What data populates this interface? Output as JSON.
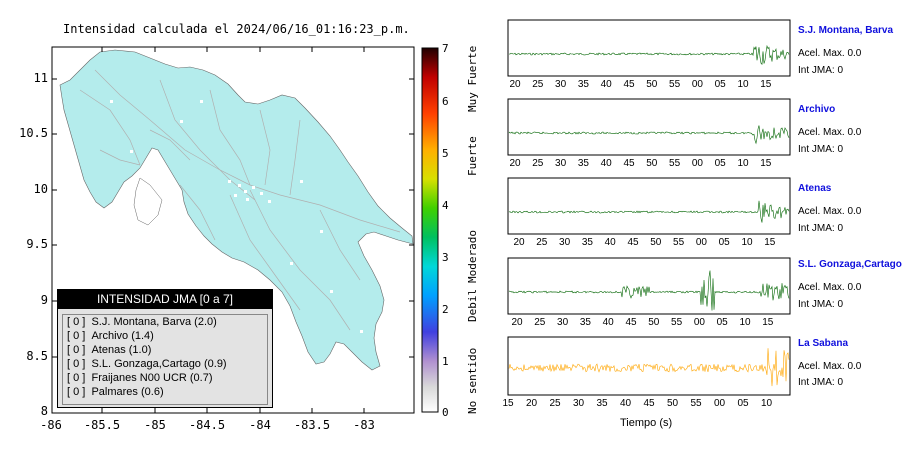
{
  "map": {
    "title": "Intensidad calculada el 2024/06/16_01:16:23_p.m.",
    "lat_ticks": [
      "11",
      "10.5",
      "10",
      "9.5",
      "9",
      "8.5",
      "8"
    ],
    "lon_ticks": [
      "-86",
      "-85.5",
      "-85",
      "-84.5",
      "-84",
      "-83.5",
      "-83"
    ],
    "land_color": "#b4ecec",
    "road_color": "#b0b0b0"
  },
  "legend": {
    "header": "INTENSIDAD JMA [0 a 7]",
    "rows": [
      {
        "value": "[ 0 ]",
        "label": "S.J. Montana, Barva (2.0)"
      },
      {
        "value": "[ 0 ]",
        "label": "Archivo (1.4)"
      },
      {
        "value": "[ 0 ]",
        "label": "Atenas (1.0)"
      },
      {
        "value": "[ 0 ]",
        "label": "S.L. Gonzaga,Cartago (0.9)"
      },
      {
        "value": "[ 0 ]",
        "label": "Fraijanes N00 UCR (0.7)"
      },
      {
        "value": "[ 0 ]",
        "label": "Palmares (0.6)"
      }
    ]
  },
  "colorbar": {
    "ticks": [
      "7",
      "6",
      "5",
      "4",
      "3",
      "2",
      "1",
      "0"
    ],
    "labels": [
      "Muy Fuerte",
      "Fuerte",
      "Moderado",
      "Debil",
      "No sentido"
    ]
  },
  "waveforms": [
    {
      "station": "S.J. Montana, Barva",
      "accel": "Acel. Max. 0.0",
      "jma": "Int JMA: 0",
      "color": "#006400",
      "ticks": [
        "20",
        "25",
        "30",
        "35",
        "40",
        "45",
        "50",
        "55",
        "00",
        "05",
        "10",
        "15"
      ]
    },
    {
      "station": "Archivo",
      "accel": "Acel. Max. 0.0",
      "jma": "Int JMA: 0",
      "color": "#006400",
      "ticks": [
        "20",
        "25",
        "30",
        "35",
        "40",
        "45",
        "50",
        "55",
        "00",
        "05",
        "10",
        "15"
      ]
    },
    {
      "station": "Atenas",
      "accel": "Acel. Max. 0.0",
      "jma": "Int JMA: 0",
      "color": "#006400",
      "ticks": [
        "20",
        "25",
        "30",
        "35",
        "40",
        "45",
        "50",
        "55",
        "00",
        "05",
        "10",
        "15"
      ]
    },
    {
      "station": "S.L. Gonzaga,Cartago",
      "accel": "Acel. Max. 0.0",
      "jma": "Int JMA: 0",
      "color": "#006400",
      "ticks": [
        "20",
        "25",
        "30",
        "35",
        "40",
        "45",
        "50",
        "55",
        "00",
        "05",
        "10",
        "15"
      ]
    },
    {
      "station": "La Sabana",
      "accel": "Acel. Max. 0.0",
      "jma": "Int JMA: 0",
      "color": "#ffa500",
      "ticks": [
        "15",
        "20",
        "25",
        "30",
        "35",
        "40",
        "45",
        "50",
        "55",
        "00",
        "05",
        "10"
      ]
    }
  ],
  "x_axis_title": "Tiempo (s)"
}
